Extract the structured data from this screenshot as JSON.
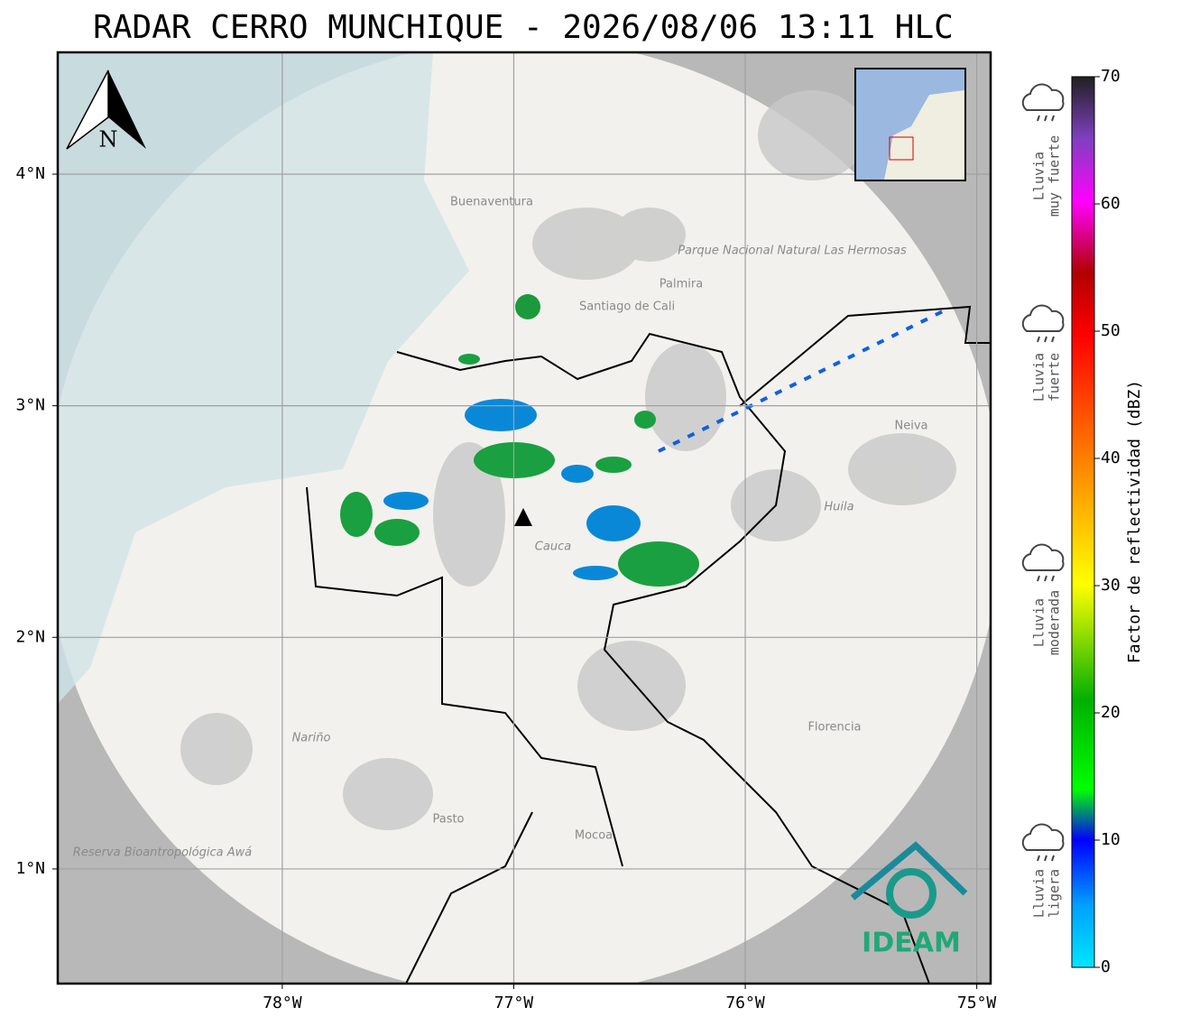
{
  "title": "RADAR CERRO MUNCHIQUE - 2026/08/06 13:11 HLC",
  "map": {
    "xlim": [
      -78.97,
      -74.94
    ],
    "ylim": [
      0.505,
      4.526
    ],
    "xticks": [
      {
        "value": -78,
        "label": "78°W"
      },
      {
        "value": -77,
        "label": "77°W"
      },
      {
        "value": -76,
        "label": "76°W"
      },
      {
        "value": -75,
        "label": "75°W"
      }
    ],
    "yticks": [
      {
        "value": 4,
        "label": "4°N"
      },
      {
        "value": 3,
        "label": "3°N"
      },
      {
        "value": 2,
        "label": "2°N"
      },
      {
        "value": 1,
        "label": "1°N"
      }
    ],
    "north": "N",
    "places": [
      "Buenaventura",
      "Santiago de Cali",
      "Palmira",
      "Parque Nacional Natural Las Hermosas",
      "Cauca",
      "Huila",
      "Neiva",
      "Nariño",
      "Pasto",
      "Mocoa",
      "Florencia",
      "Reserva Bioantropológica Awá"
    ],
    "logo": "IDEAM"
  },
  "colorbar": {
    "label": "Factor de reflectividad (dBZ)",
    "lim": [
      0,
      70
    ],
    "ticks": [
      0,
      10,
      20,
      30,
      40,
      50,
      60,
      70
    ]
  },
  "legend": [
    {
      "lines": [
        "Lluvia",
        "muy fuerte"
      ]
    },
    {
      "lines": [
        "Lluvia",
        "fuerte"
      ]
    },
    {
      "lines": [
        "Lluvia",
        "moderada"
      ]
    },
    {
      "lines": [
        "Lluvia",
        "ligera"
      ]
    }
  ]
}
